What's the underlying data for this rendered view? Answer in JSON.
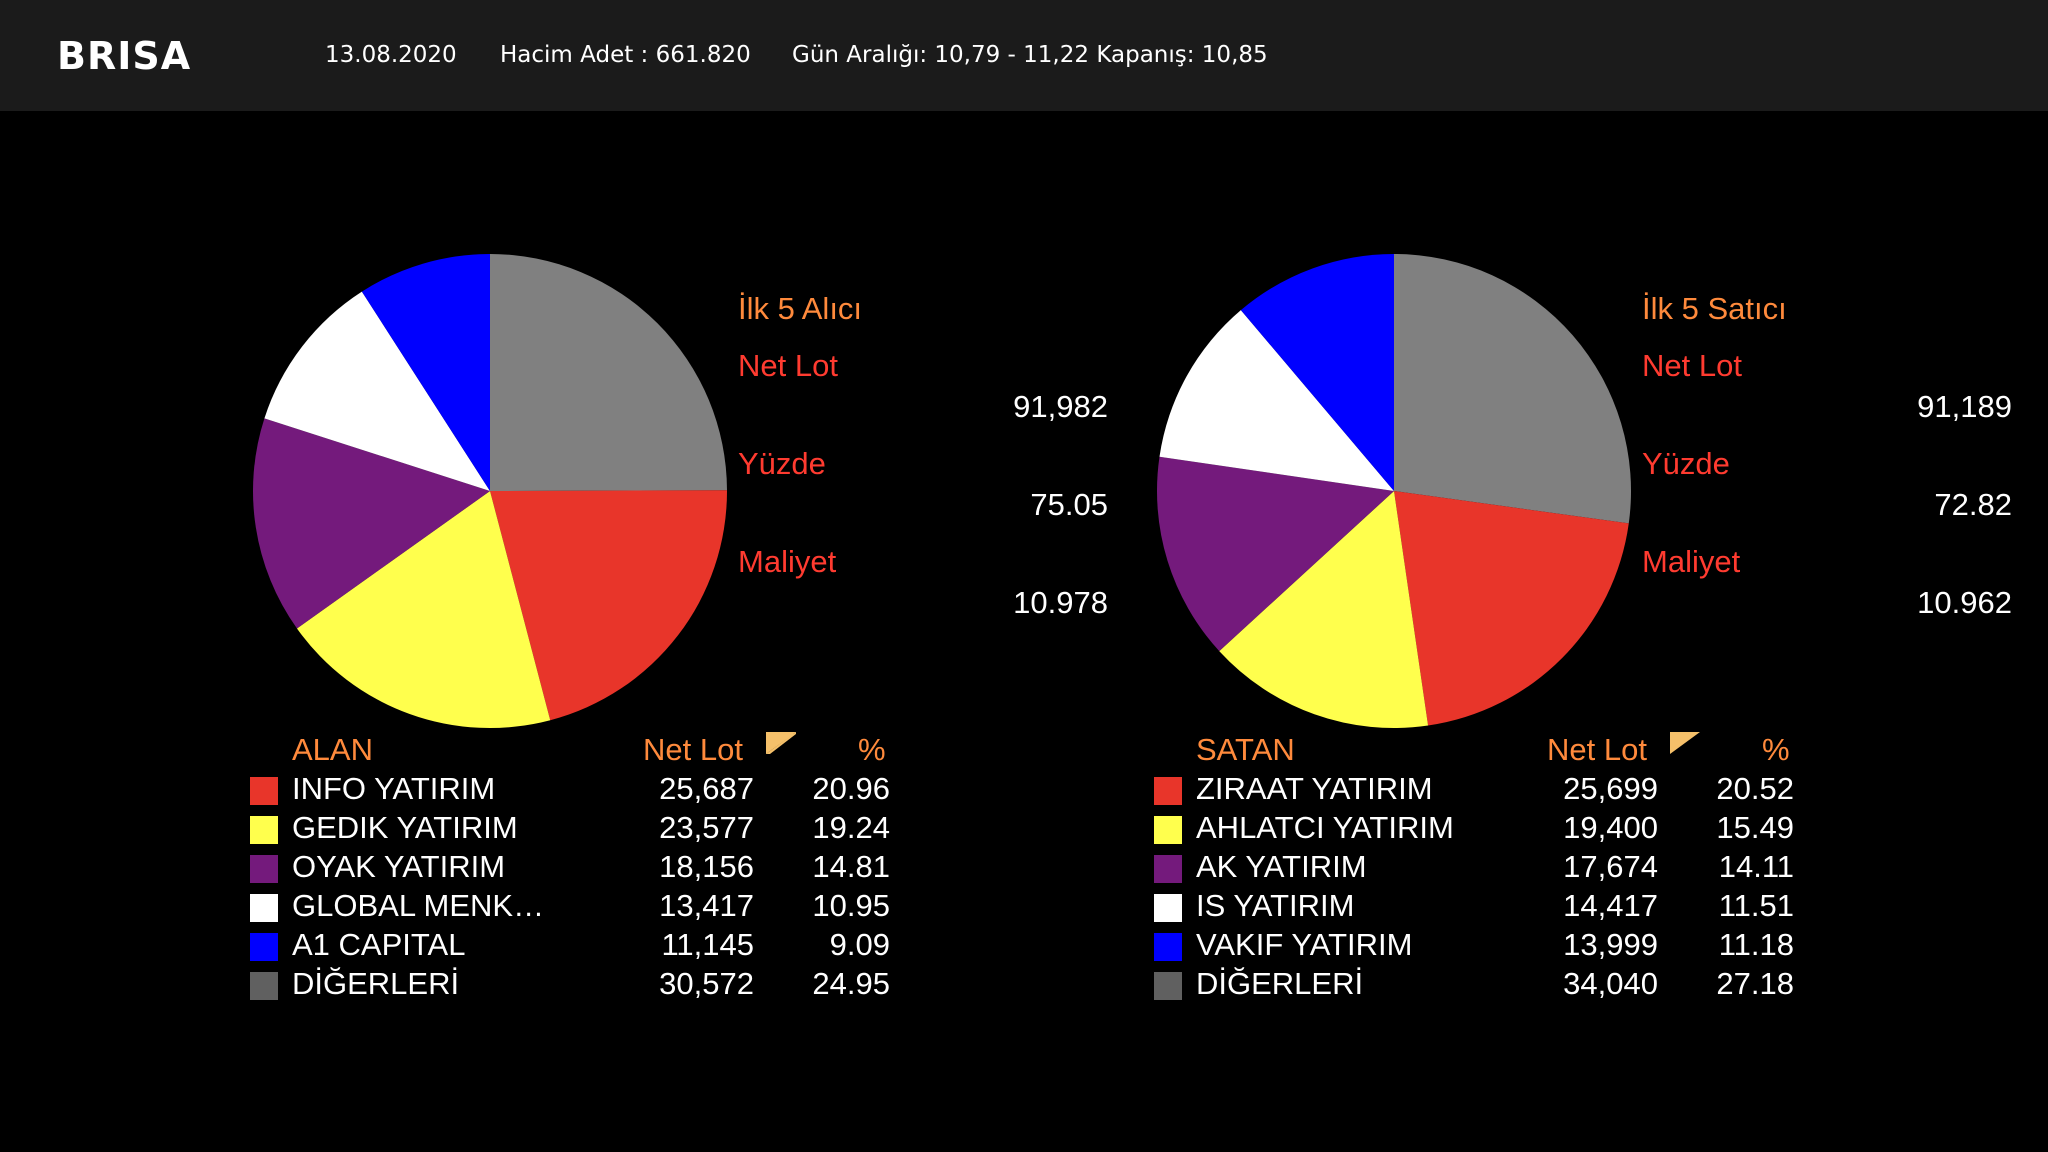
{
  "header": {
    "ticker": "BRISA",
    "date": "13.08.2020",
    "volume": "Hacim Adet : 661.820",
    "range": "Gün Aralığı: 10,79 - 11,22 Kapanış: 10,85"
  },
  "buyers": {
    "title": "İlk 5 Alıcı",
    "net_lot_label": "Net Lot",
    "net_lot": "91,982",
    "percent_label": "Yüzde",
    "percent": "75.05",
    "cost_label": "Maliyet",
    "cost": "10.978",
    "table_headers": {
      "name": "ALAN",
      "net_lot": "Net Lot",
      "percent": "%"
    },
    "rows": [
      {
        "name": "INFO YATIRIM",
        "net_lot": "25,687",
        "percent": "20.96",
        "color": "#e8352a"
      },
      {
        "name": "GEDIK YATIRIM",
        "net_lot": "23,577",
        "percent": "19.24",
        "color": "#ffff4d"
      },
      {
        "name": "OYAK YATIRIM",
        "net_lot": "18,156",
        "percent": "14.81",
        "color": "#741a7c"
      },
      {
        "name": "GLOBAL MENK…",
        "net_lot": "13,417",
        "percent": "10.95",
        "color": "#ffffff"
      },
      {
        "name": "A1 CAPITAL",
        "net_lot": "11,145",
        "percent": "9.09",
        "color": "#0000ff"
      },
      {
        "name": "DİĞERLERİ",
        "net_lot": "30,572",
        "percent": "24.95",
        "color": "#808080"
      }
    ]
  },
  "sellers": {
    "title": "İlk 5 Satıcı",
    "net_lot_label": "Net Lot",
    "net_lot": "91,189",
    "percent_label": "Yüzde",
    "percent": "72.82",
    "cost_label": "Maliyet",
    "cost": "10.962",
    "table_headers": {
      "name": "SATAN",
      "net_lot": "Net Lot",
      "percent": "%"
    },
    "rows": [
      {
        "name": "ZIRAAT YATIRIM",
        "net_lot": "25,699",
        "percent": "20.52",
        "color": "#e8352a"
      },
      {
        "name": "AHLATCI YATIRIM",
        "net_lot": "19,400",
        "percent": "15.49",
        "color": "#ffff4d"
      },
      {
        "name": "AK YATIRIM",
        "net_lot": "17,674",
        "percent": "14.11",
        "color": "#741a7c"
      },
      {
        "name": "IS YATIRIM",
        "net_lot": "14,417",
        "percent": "11.51",
        "color": "#ffffff"
      },
      {
        "name": "VAKIF YATIRIM",
        "net_lot": "13,999",
        "percent": "11.18",
        "color": "#0000ff"
      },
      {
        "name": "DİĞERLERİ",
        "net_lot": "34,040",
        "percent": "27.18",
        "color": "#808080"
      }
    ]
  },
  "colors": {
    "background": "#000000",
    "header_bg": "#1b1b1b",
    "heading_orange": "#ff8a3c",
    "label_red": "#ff3b30",
    "sort_icon": "#f5c06a"
  },
  "chart_data": [
    {
      "type": "pie",
      "title": "İlk 5 Alıcı",
      "categories": [
        "INFO YATIRIM",
        "GEDIK YATIRIM",
        "OYAK YATIRIM",
        "GLOBAL MENK…",
        "A1 CAPITAL",
        "DİĞERLERİ"
      ],
      "values": [
        20.96,
        19.24,
        14.81,
        10.95,
        9.09,
        24.95
      ],
      "net_lots": [
        25687,
        23577,
        18156,
        13417,
        11145,
        30572
      ],
      "colors": [
        "#e8352a",
        "#ffff4d",
        "#741a7c",
        "#ffffff",
        "#0000ff",
        "#808080"
      ]
    },
    {
      "type": "pie",
      "title": "İlk 5 Satıcı",
      "categories": [
        "ZIRAAT YATIRIM",
        "AHLATCI YATIRIM",
        "AK YATIRIM",
        "IS YATIRIM",
        "VAKIF YATIRIM",
        "DİĞERLERİ"
      ],
      "values": [
        20.52,
        15.49,
        14.11,
        11.51,
        11.18,
        27.18
      ],
      "net_lots": [
        25699,
        19400,
        17674,
        14417,
        13999,
        34040
      ],
      "colors": [
        "#e8352a",
        "#ffff4d",
        "#741a7c",
        "#ffffff",
        "#0000ff",
        "#808080"
      ]
    }
  ]
}
